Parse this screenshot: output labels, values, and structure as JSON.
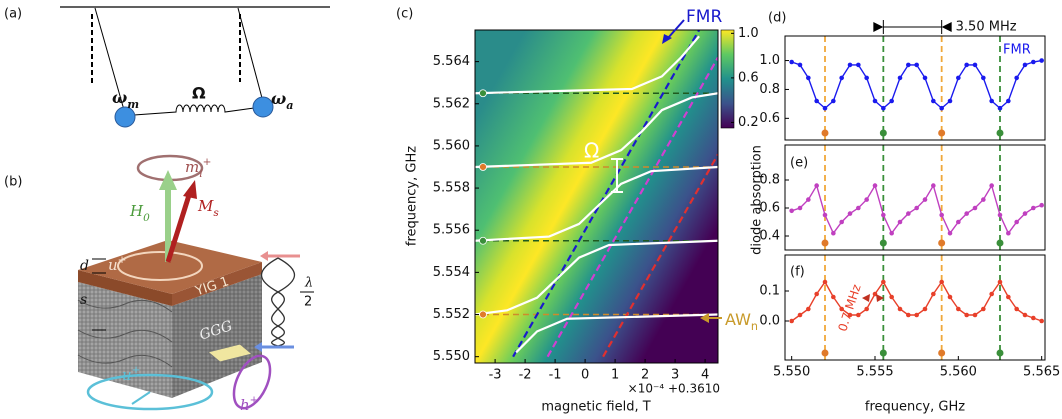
{
  "panel_labels": [
    "(a)",
    "(b)",
    "(c)",
    "(d)",
    "(e)",
    "(f)"
  ],
  "diagram_a": {
    "nodes": [
      {
        "symbol": "ω",
        "sub": "m"
      },
      {
        "symbol": "ω",
        "sub": "a"
      }
    ],
    "coupling": "Ω"
  },
  "diagram_b": {
    "m": {
      "symbol": "m",
      "sub": "i",
      "sup": "+"
    },
    "h0": {
      "symbol": "H",
      "sub": "0"
    },
    "ms": {
      "symbol": "M",
      "sub": "s"
    },
    "u_top": {
      "symbol": "u",
      "sup": "+"
    },
    "d": "d",
    "s": "s",
    "yig": "YIG 1",
    "ggg": "GGG",
    "lambda": "λ",
    "two": "2",
    "u_bottom": {
      "symbol": "u",
      "sup": "+"
    },
    "h": {
      "symbol": "h",
      "sup": "+"
    }
  },
  "modes": [
    {
      "value": 5.552,
      "color": "#e07a2a"
    },
    {
      "value": 5.5555,
      "color": "#3a8f3a"
    },
    {
      "value": 5.559,
      "color": "#e07a2a"
    },
    {
      "value": 5.5625,
      "color": "#3a8f3a"
    }
  ],
  "chart_data": [
    {
      "type": "heatmap",
      "ylabel": "frequency, GHz",
      "xlabel": "magnetic field, T",
      "x_offset": "×10⁻⁴ +0.3610",
      "xlim": [
        -3.67,
        4.43
      ],
      "ylim": [
        5.5497,
        5.5655
      ],
      "xticks": [
        -3,
        -2,
        -1,
        0,
        1,
        2,
        3,
        4
      ],
      "yticks": [
        {
          "value": 5.55,
          "label": "5.550"
        },
        {
          "value": 5.552,
          "label": "5.552"
        },
        {
          "value": 5.554,
          "label": "5.554"
        },
        {
          "value": 5.556,
          "label": "5.556"
        },
        {
          "value": 5.558,
          "label": "5.558"
        },
        {
          "value": 5.56,
          "label": "5.560"
        },
        {
          "value": 5.562,
          "label": "5.562"
        },
        {
          "value": 5.564,
          "label": "5.564"
        }
      ],
      "clim": [
        0.15,
        1.03
      ],
      "cticks": [
        0.2,
        0.6,
        {
          "value": 1,
          "label": "1.0"
        }
      ],
      "coupling_label": "Ω",
      "aw_label": {
        "text": "AW",
        "sub": "n"
      },
      "series": [
        {
          "name": "FMR",
          "color": "#1a1acc",
          "dash": true,
          "x": [
            -2.4,
            3.8
          ],
          "values": [
            5.55,
            5.5655
          ]
        },
        {
          "color": "#d040d0",
          "dash": true,
          "x": [
            -1.25,
            4.43
          ],
          "values": [
            5.55,
            5.5642
          ]
        },
        {
          "color": "#e03030",
          "dash": true,
          "x": [
            0.6,
            4.43
          ],
          "values": [
            5.55,
            5.5596
          ]
        },
        {
          "color": "#ffffff",
          "x": [
            -2.3,
            -1.6,
            -0.6,
            4.43
          ],
          "values": [
            5.5502,
            5.5512,
            5.5518,
            5.552
          ]
        },
        {
          "color": "#ffffff",
          "x": [
            -3.67,
            -2.6,
            -1.6,
            -0.9,
            -0.2,
            0.8,
            4.43
          ],
          "values": [
            5.552,
            5.5522,
            5.5528,
            5.55375,
            5.5547,
            5.5553,
            5.5555
          ]
        },
        {
          "color": "#ffffff",
          "x": [
            -3.67,
            -1.2,
            -0.2,
            0.5,
            1.2,
            2.2,
            4.43
          ],
          "values": [
            5.5555,
            5.5557,
            5.5563,
            5.55725,
            5.5582,
            5.5588,
            5.559
          ]
        },
        {
          "color": "#ffffff",
          "x": [
            -3.67,
            0.2,
            1.2,
            1.9,
            2.56,
            3.56,
            4.43
          ],
          "values": [
            5.559,
            5.5592,
            5.5598,
            5.5607,
            5.5617,
            5.5623,
            5.5625
          ]
        },
        {
          "color": "#ffffff",
          "x": [
            -3.67,
            1.56,
            2.56,
            3.2,
            3.8
          ],
          "values": [
            5.5625,
            5.5627,
            5.5633,
            5.5642,
            5.5652
          ]
        }
      ]
    },
    {
      "type": "line",
      "xlim": [
        5.5496,
        5.5652
      ],
      "ylim": [
        0.45,
        1.17
      ],
      "yticks": [
        0.6,
        0.8,
        {
          "value": 1,
          "label": "1.0"
        }
      ],
      "annotation": "3.50 MHz",
      "x": [
        5.55,
        5.5505,
        5.551,
        5.5515,
        5.552,
        5.5525,
        5.553,
        5.5535,
        5.554,
        5.5545,
        5.555,
        5.5555,
        5.556,
        5.5565,
        5.557,
        5.5575,
        5.558,
        5.5585,
        5.559,
        5.5595,
        5.56,
        5.5605,
        5.561,
        5.5615,
        5.562,
        5.5625,
        5.563,
        5.5635,
        5.564,
        5.5645,
        5.565
      ],
      "series": [
        {
          "name": "FMR",
          "color": "#1a1aee",
          "values": [
            0.99,
            0.97,
            0.88,
            0.72,
            0.67,
            0.72,
            0.88,
            0.97,
            0.97,
            0.88,
            0.72,
            0.67,
            0.72,
            0.88,
            0.97,
            0.97,
            0.88,
            0.72,
            0.67,
            0.72,
            0.88,
            0.97,
            0.97,
            0.88,
            0.72,
            0.67,
            0.72,
            0.88,
            0.97,
            0.99,
            1.0
          ]
        }
      ]
    },
    {
      "type": "line",
      "ylabel": "diode absorption",
      "xlim": [
        5.5496,
        5.5652
      ],
      "ylim": [
        0.3,
        1.05
      ],
      "yticks": [
        0.4,
        0.6,
        0.8
      ],
      "x": [
        5.55,
        5.5505,
        5.551,
        5.5515,
        5.552,
        5.5525,
        5.553,
        5.5535,
        5.554,
        5.5545,
        5.555,
        5.5555,
        5.556,
        5.5565,
        5.557,
        5.5575,
        5.558,
        5.5585,
        5.559,
        5.5595,
        5.56,
        5.5605,
        5.561,
        5.5615,
        5.562,
        5.5625,
        5.563,
        5.5635,
        5.564,
        5.5645,
        5.565
      ],
      "series": [
        {
          "color": "#c040c0",
          "values": [
            0.58,
            0.6,
            0.66,
            0.76,
            0.55,
            0.42,
            0.5,
            0.56,
            0.6,
            0.66,
            0.76,
            0.55,
            0.42,
            0.5,
            0.56,
            0.6,
            0.66,
            0.76,
            0.55,
            0.42,
            0.5,
            0.56,
            0.6,
            0.66,
            0.76,
            0.55,
            0.42,
            0.5,
            0.56,
            0.6,
            0.62
          ]
        }
      ]
    },
    {
      "type": "line",
      "xlabel": "frequency, GHz",
      "annotation": "0.7 MHz",
      "xlim": [
        5.5496,
        5.5652
      ],
      "ylim": [
        -0.13,
        0.22
      ],
      "xticks": [
        {
          "value": 5.55,
          "label": "5.550"
        },
        {
          "value": 5.555,
          "label": "5.555"
        },
        {
          "value": 5.56,
          "label": "5.560"
        },
        {
          "value": 5.565,
          "label": "5.565"
        }
      ],
      "yticks": [
        {
          "value": 0,
          "label": "0.0"
        },
        0.1
      ],
      "x": [
        5.55,
        5.5505,
        5.551,
        5.5515,
        5.552,
        5.5525,
        5.553,
        5.5535,
        5.554,
        5.5545,
        5.555,
        5.5555,
        5.556,
        5.5565,
        5.557,
        5.5575,
        5.558,
        5.5585,
        5.559,
        5.5595,
        5.56,
        5.5605,
        5.561,
        5.5615,
        5.562,
        5.5625,
        5.563,
        5.5635,
        5.564,
        5.5645,
        5.565
      ],
      "series": [
        {
          "color": "#e8402a",
          "values": [
            0.0,
            0.02,
            0.04,
            0.09,
            0.13,
            0.08,
            0.04,
            0.02,
            0.02,
            0.04,
            0.09,
            0.13,
            0.08,
            0.04,
            0.02,
            0.02,
            0.04,
            0.09,
            0.13,
            0.08,
            0.04,
            0.02,
            0.02,
            0.04,
            0.09,
            0.13,
            0.08,
            0.04,
            0.02,
            0.01,
            0.0
          ]
        }
      ]
    }
  ]
}
